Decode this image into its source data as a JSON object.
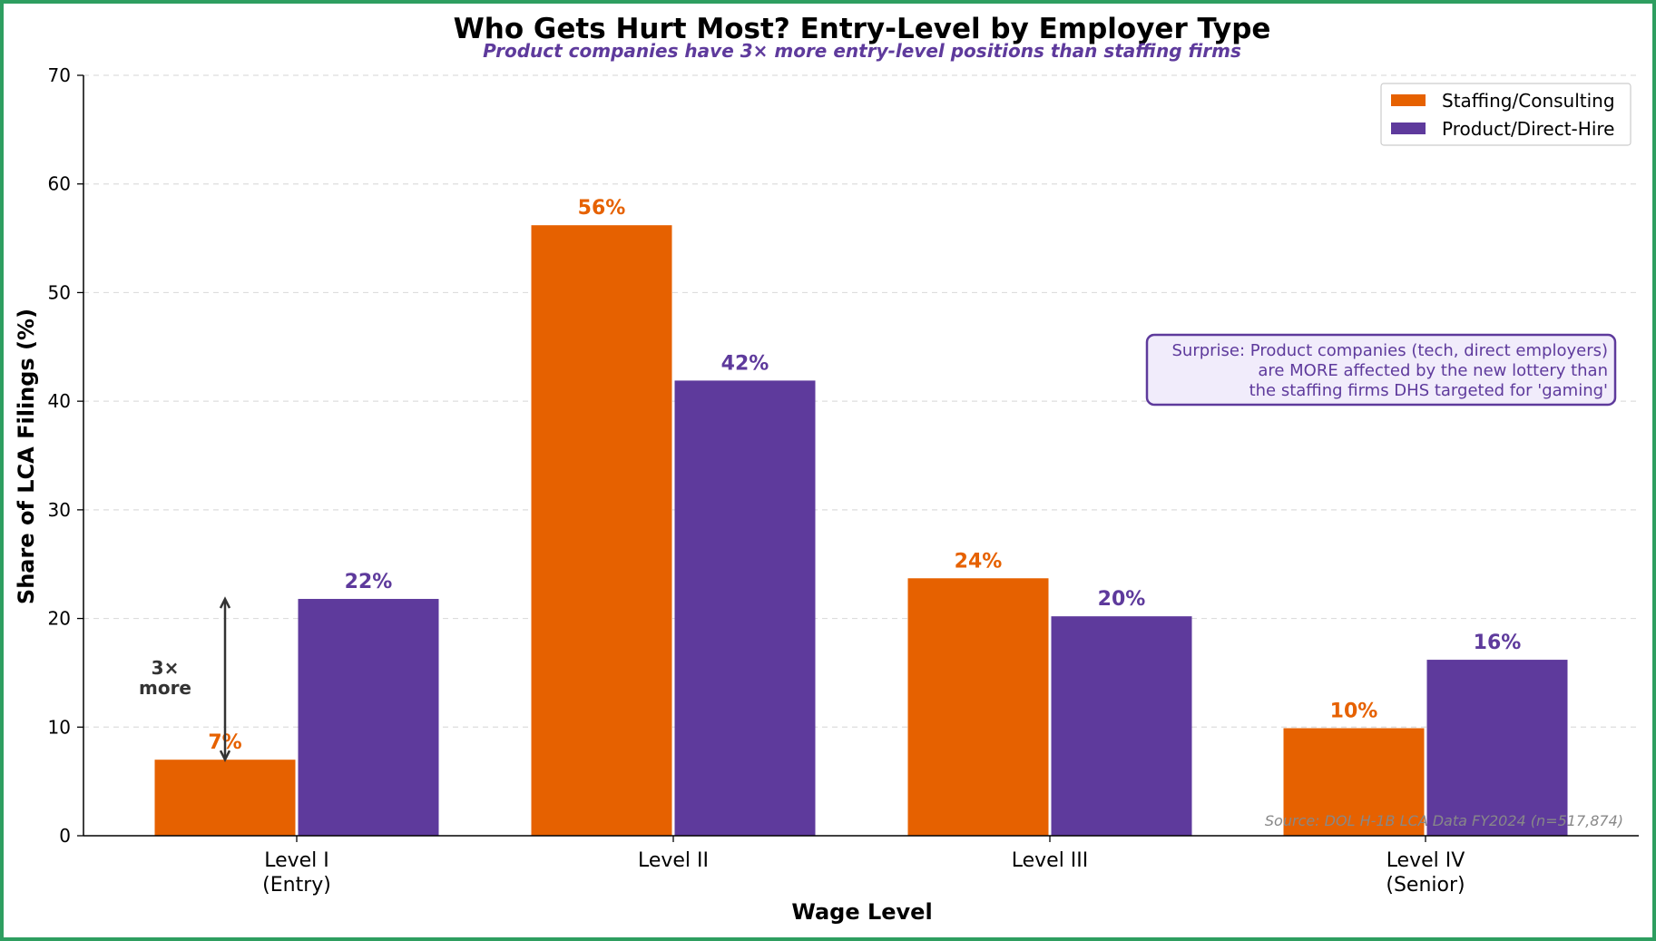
{
  "chart_data": {
    "type": "bar",
    "title": "Who Gets Hurt Most? Entry-Level by Employer Type",
    "subtitle": "Product companies have 3× more entry-level positions than staffing firms",
    "xlabel": "Wage Level",
    "ylabel": "Share of LCA Filings (%)",
    "categories": [
      "Level I\n(Entry)",
      "Level II",
      "Level III",
      "Level IV\n(Senior)"
    ],
    "ylim": [
      0,
      70
    ],
    "yticks": [
      0,
      10,
      20,
      30,
      40,
      50,
      60,
      70
    ],
    "grid": "horizontal dashed",
    "legend_position": "top-right",
    "series": [
      {
        "name": "Staffing/Consulting",
        "color": "#e66100",
        "values": [
          7.0,
          56.2,
          23.7,
          9.9
        ],
        "labels": [
          "7%",
          "56%",
          "24%",
          "10%"
        ]
      },
      {
        "name": "Product/Direct-Hire",
        "color": "#5e3a9c",
        "values": [
          21.8,
          41.9,
          20.2,
          16.2
        ],
        "labels": [
          "22%",
          "42%",
          "20%",
          "16%"
        ]
      }
    ],
    "annotations": {
      "arrow_text": "3×\nmore",
      "arrow_from": 7.0,
      "arrow_to": 21.8,
      "callout": "Surprise: Product companies (tech, direct employers)\nare MORE affected by the new lottery than\nthe staffing firms DHS targeted for 'gaming'",
      "callout_color": "#5e3a9c",
      "callout_bg": "#f1ecfb",
      "source": "Source: DOL H-1B LCA Data FY2024 (n=517,874)"
    }
  },
  "colors": {
    "subtitle": "#5e3a9c",
    "frame": "#2e9e60"
  }
}
